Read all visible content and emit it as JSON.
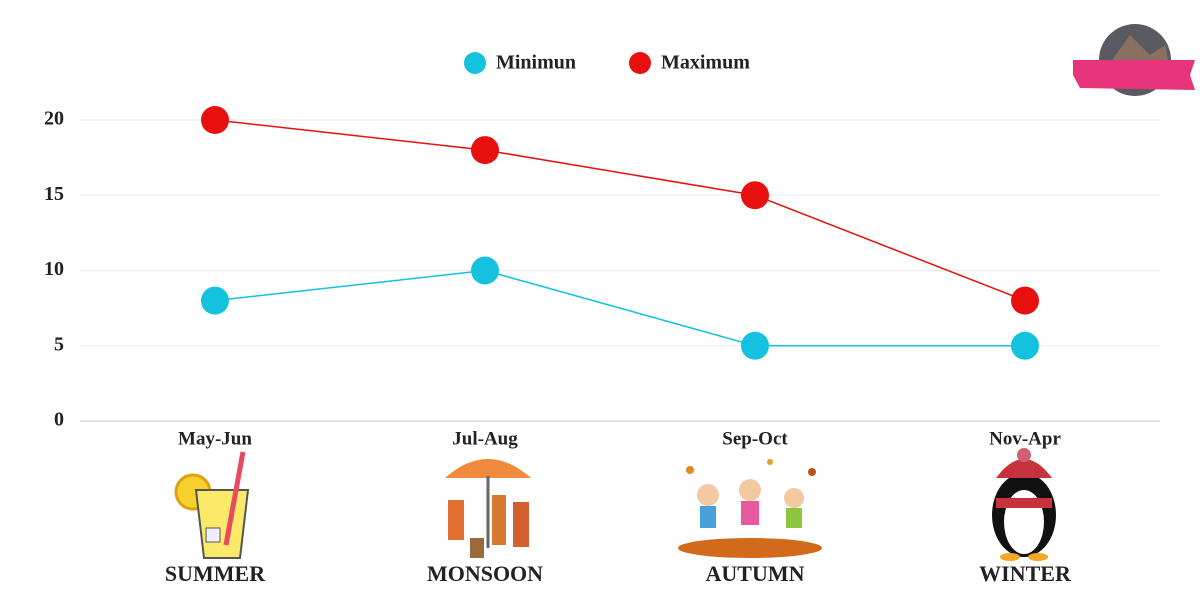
{
  "chart_data": {
    "type": "line",
    "categories": [
      "May-Jun",
      "Jul-Aug",
      "Sep-Oct",
      "Nov-Apr"
    ],
    "season_labels": [
      "SUMMER",
      "MONSOON",
      "AUTUMN",
      "WINTER"
    ],
    "series": [
      {
        "name": "Minimun",
        "color": "#14c2e0",
        "values": [
          8,
          10,
          5,
          5
        ]
      },
      {
        "name": "Maximum",
        "color": "#e8100f",
        "values": [
          20,
          18,
          15,
          8
        ]
      }
    ],
    "ylim": [
      0,
      20
    ],
    "yticks": [
      0,
      5,
      10,
      15,
      20
    ],
    "grid": true,
    "legend": "top"
  }
}
